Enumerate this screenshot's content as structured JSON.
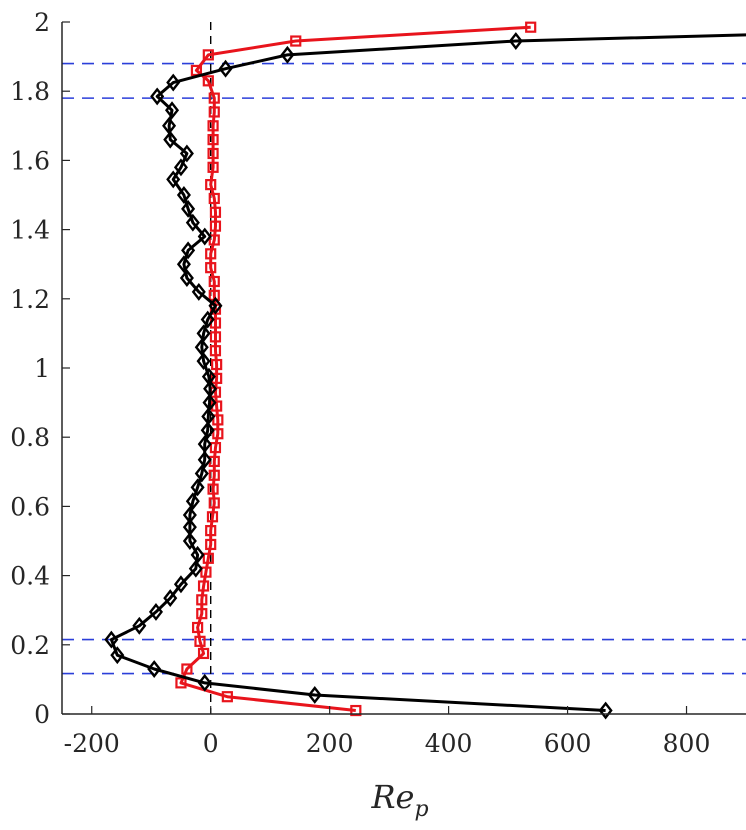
{
  "chart_data": {
    "type": "line",
    "title": "",
    "xlabel": "Re",
    "xlabel_sub": "p",
    "ylabel": "",
    "xlim": [
      -250,
      900
    ],
    "ylim": [
      0,
      2
    ],
    "xticks": [
      -200,
      0,
      200,
      400,
      600,
      800
    ],
    "yticks": [
      0,
      0.2,
      0.4,
      0.6,
      0.8,
      1,
      1.2,
      1.4,
      1.6,
      1.8,
      2
    ],
    "xtick_labels": [
      "-200",
      "0",
      "200",
      "400",
      "600",
      "800"
    ],
    "ytick_labels": [
      "0",
      "0.2",
      "0.4",
      "0.6",
      "0.8",
      "1",
      "1.2",
      "1.4",
      "1.6",
      "1.8",
      "2"
    ],
    "grid": false,
    "reference_lines": {
      "horizontal": [
        0.117,
        0.215,
        1.78,
        1.88
      ],
      "horizontal_color": "#2b3fd9",
      "vertical": [
        0
      ],
      "vertical_color": "#000000"
    },
    "series": [
      {
        "marker": "square",
        "color": "#e8141c",
        "points": [
          [
            244,
            0.01
          ],
          [
            28,
            0.05
          ],
          [
            -50,
            0.09
          ],
          [
            -40,
            0.13
          ],
          [
            -12,
            0.175
          ],
          [
            -18,
            0.21
          ],
          [
            -22,
            0.25
          ],
          [
            -15,
            0.29
          ],
          [
            -15,
            0.33
          ],
          [
            -12,
            0.37
          ],
          [
            -8,
            0.41
          ],
          [
            -4,
            0.45
          ],
          [
            0,
            0.49
          ],
          [
            0,
            0.53
          ],
          [
            3,
            0.57
          ],
          [
            6,
            0.61
          ],
          [
            4,
            0.65
          ],
          [
            6,
            0.69
          ],
          [
            6,
            0.73
          ],
          [
            8,
            0.77
          ],
          [
            12,
            0.81
          ],
          [
            12,
            0.85
          ],
          [
            10,
            0.89
          ],
          [
            8,
            0.93
          ],
          [
            10,
            0.97
          ],
          [
            10,
            1.01
          ],
          [
            8,
            1.05
          ],
          [
            8,
            1.09
          ],
          [
            8,
            1.13
          ],
          [
            8,
            1.17
          ],
          [
            6,
            1.21
          ],
          [
            6,
            1.25
          ],
          [
            0,
            1.29
          ],
          [
            0,
            1.33
          ],
          [
            6,
            1.37
          ],
          [
            8,
            1.41
          ],
          [
            8,
            1.45
          ],
          [
            6,
            1.49
          ],
          [
            0,
            1.53
          ],
          [
            4,
            1.58
          ],
          [
            4,
            1.62
          ],
          [
            4,
            1.66
          ],
          [
            4,
            1.7
          ],
          [
            6,
            1.74
          ],
          [
            6,
            1.78
          ],
          [
            -4,
            1.83
          ],
          [
            -24,
            1.86
          ],
          [
            -4,
            1.905
          ],
          [
            143,
            1.945
          ],
          [
            538,
            1.985
          ]
        ]
      },
      {
        "marker": "diamond",
        "color": "#000000",
        "points": [
          [
            664,
            0.01
          ],
          [
            175,
            0.055
          ],
          [
            -10,
            0.09
          ],
          [
            -95,
            0.13
          ],
          [
            -157,
            0.17
          ],
          [
            -167,
            0.215
          ],
          [
            -120,
            0.255
          ],
          [
            -92,
            0.295
          ],
          [
            -68,
            0.335
          ],
          [
            -50,
            0.375
          ],
          [
            -25,
            0.42
          ],
          [
            -22,
            0.46
          ],
          [
            -35,
            0.5
          ],
          [
            -35,
            0.54
          ],
          [
            -35,
            0.575
          ],
          [
            -30,
            0.615
          ],
          [
            -22,
            0.655
          ],
          [
            -15,
            0.695
          ],
          [
            -10,
            0.735
          ],
          [
            -10,
            0.78
          ],
          [
            -5,
            0.82
          ],
          [
            -4,
            0.86
          ],
          [
            -2,
            0.9
          ],
          [
            -1,
            0.94
          ],
          [
            -3,
            0.975
          ],
          [
            -12,
            1.02
          ],
          [
            -15,
            1.06
          ],
          [
            -12,
            1.1
          ],
          [
            -5,
            1.14
          ],
          [
            8,
            1.18
          ],
          [
            -20,
            1.22
          ],
          [
            -40,
            1.26
          ],
          [
            -45,
            1.3
          ],
          [
            -38,
            1.34
          ],
          [
            -10,
            1.38
          ],
          [
            -30,
            1.42
          ],
          [
            -38,
            1.46
          ],
          [
            -45,
            1.5
          ],
          [
            -63,
            1.545
          ],
          [
            -50,
            1.58
          ],
          [
            -40,
            1.62
          ],
          [
            -68,
            1.66
          ],
          [
            -70,
            1.7
          ],
          [
            -65,
            1.745
          ],
          [
            -90,
            1.785
          ],
          [
            -63,
            1.825
          ],
          [
            25,
            1.865
          ],
          [
            129,
            1.905
          ],
          [
            513,
            1.945
          ],
          [
            950,
            1.965
          ]
        ]
      }
    ]
  }
}
